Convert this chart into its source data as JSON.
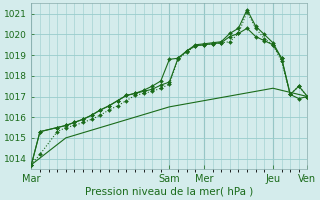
{
  "xlabel": "Pression niveau de la mer( hPa )",
  "bg_color": "#d4ecec",
  "grid_color": "#99cccc",
  "line_color": "#1a6b1a",
  "ylim": [
    1013.5,
    1021.5
  ],
  "yticks": [
    1014,
    1015,
    1016,
    1017,
    1018,
    1019,
    1020,
    1021
  ],
  "xlim": [
    0,
    192
  ],
  "day_ticks": [
    0,
    96,
    120,
    168,
    192
  ],
  "day_labels": [
    "Mar",
    "Sam",
    "Mer",
    "Jeu",
    "Ven"
  ],
  "vlines": [
    0,
    96,
    120,
    168
  ],
  "minor_grid_step": 6,
  "series1_x": [
    0,
    6,
    18,
    24,
    30,
    36,
    42,
    48,
    54,
    60,
    66,
    72,
    78,
    84,
    90,
    96,
    102,
    108,
    114,
    120,
    126,
    132,
    138,
    144,
    150,
    156,
    162,
    168,
    174,
    180,
    186,
    192
  ],
  "series1_y": [
    1013.7,
    1014.2,
    1015.3,
    1015.5,
    1015.6,
    1015.75,
    1015.9,
    1016.1,
    1016.35,
    1016.55,
    1016.8,
    1017.05,
    1017.15,
    1017.25,
    1017.4,
    1017.6,
    1018.8,
    1019.15,
    1019.45,
    1019.5,
    1019.55,
    1019.6,
    1019.65,
    1020.05,
    1021.1,
    1020.3,
    1019.8,
    1019.5,
    1018.7,
    1017.1,
    1017.5,
    1017.0
  ],
  "series1_linestyle": ":",
  "series1_marker": true,
  "series2_x": [
    0,
    6,
    18,
    24,
    30,
    36,
    42,
    48,
    54,
    60,
    66,
    72,
    78,
    84,
    90,
    96,
    102,
    108,
    114,
    120,
    126,
    132,
    138,
    144,
    150,
    156,
    162,
    168,
    174,
    180,
    186,
    192
  ],
  "series2_y": [
    1013.7,
    1015.3,
    1015.5,
    1015.6,
    1015.75,
    1015.9,
    1016.1,
    1016.35,
    1016.55,
    1016.8,
    1017.05,
    1017.15,
    1017.25,
    1017.35,
    1017.55,
    1017.7,
    1018.85,
    1019.2,
    1019.5,
    1019.55,
    1019.6,
    1019.65,
    1020.05,
    1020.3,
    1021.2,
    1020.4,
    1020.0,
    1019.6,
    1018.85,
    1017.1,
    1017.5,
    1017.0
  ],
  "series2_linestyle": "-",
  "series2_marker": true,
  "series3_x": [
    0,
    6,
    18,
    24,
    30,
    36,
    42,
    48,
    54,
    60,
    66,
    72,
    78,
    84,
    90,
    96,
    102,
    108,
    114,
    120,
    126,
    132,
    138,
    144,
    150,
    156,
    162,
    168,
    174,
    180,
    186,
    192
  ],
  "series3_y": [
    1013.7,
    1015.3,
    1015.5,
    1015.6,
    1015.75,
    1015.9,
    1016.1,
    1016.35,
    1016.55,
    1016.8,
    1017.05,
    1017.15,
    1017.3,
    1017.5,
    1017.75,
    1018.8,
    1018.85,
    1019.2,
    1019.45,
    1019.5,
    1019.55,
    1019.6,
    1019.9,
    1020.05,
    1020.3,
    1019.9,
    1019.7,
    1019.5,
    1018.85,
    1017.1,
    1016.9,
    1017.0
  ],
  "series3_linestyle": "-",
  "series3_marker": true,
  "series4_x": [
    0,
    24,
    48,
    72,
    96,
    120,
    144,
    168,
    192
  ],
  "series4_y": [
    1013.7,
    1015.0,
    1015.5,
    1016.0,
    1016.5,
    1016.8,
    1017.1,
    1017.4,
    1017.0
  ],
  "series4_linestyle": "-",
  "series4_marker": false
}
